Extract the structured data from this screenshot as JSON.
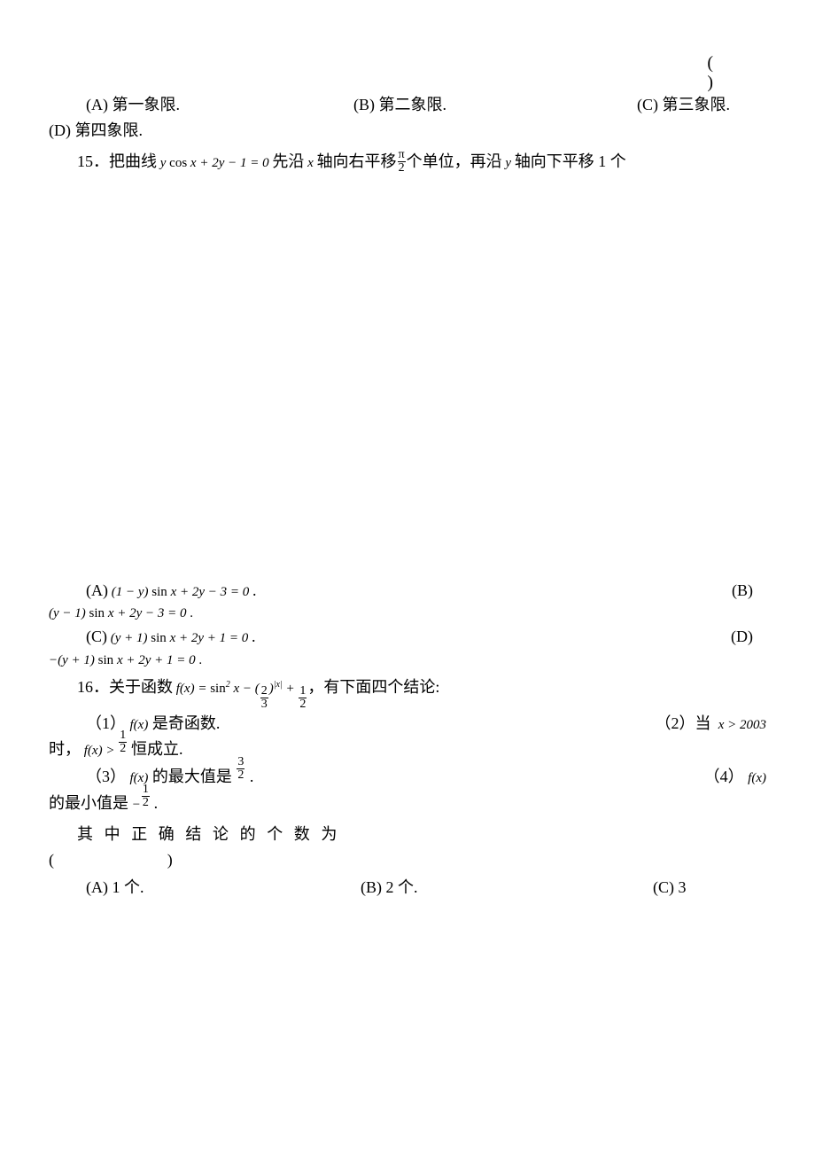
{
  "colors": {
    "text": "#000000",
    "background": "#ffffff"
  },
  "typography": {
    "body_family": "SimSun",
    "body_size_pt": 14,
    "math_family": "Times New Roman",
    "math_size_pt": 11
  },
  "paren_block": {
    "open": "(",
    "close": ")"
  },
  "q14_opts": {
    "A": "(A)  第一象限.",
    "B": "(B)  第二象限.",
    "C": "(C)  第三象限.",
    "D": "(D)  第四象限."
  },
  "q15": {
    "num": "15．",
    "pre": "把曲线",
    "curve": "y cos x + 2y − 1 = 0",
    "mid1": "先沿",
    "axis_x": "x",
    "mid2": "轴向右平移",
    "shift_frac": {
      "num": "π",
      "den": "2"
    },
    "mid3": "个单位，再沿",
    "axis_y": "y",
    "mid4": "轴向下平移 1 个",
    "opts": {
      "A_label": "(A)",
      "A_expr": "(1 − y) sin x + 2y − 3 = 0",
      "B_label": "(B)",
      "B_expr": "(y − 1) sin x + 2y − 3 = 0",
      "C_label": "(C)",
      "C_expr": "(y + 1) sin x + 2y + 1 = 0",
      "D_label": "(D)",
      "D_expr": "−(y + 1) sin x + 2y + 1 = 0"
    },
    "dot": "."
  },
  "q16": {
    "num": "16．",
    "pre": "关于函数",
    "fx_expr_prefix": "f(x) = sin",
    "fx_expr_sq": "2",
    "fx_expr_mid": " x − (",
    "frac_23": {
      "num": "2",
      "den": "3"
    },
    "fx_expr_pow": ")",
    "fx_expr_exp": "|x|",
    "fx_expr_plus": " + ",
    "frac_12": {
      "num": "1",
      "den": "2"
    },
    "tail": "，有下面四个结论:",
    "stmt1_label": "（1）",
    "stmt1": "是奇函数.",
    "stmt2_label": "（2）当",
    "stmt2_cond": "x > 2003",
    "stmt2_line2_pre": "时，",
    "stmt2_line2_expr": "f(x) > ",
    "stmt2_tail": "恒成立.",
    "stmt3_label": "（3）",
    "stmt3_mid": "的最大值是",
    "frac_32": {
      "num": "3",
      "den": "2"
    },
    "stmt4_label": "（4）",
    "stmt4_mid": "的最小值是",
    "neg": "−",
    "concl": "其中正确结论的个数为",
    "paren": "(        )",
    "opts": {
      "A": "(A)  1 个.",
      "B": "(B)  2 个.",
      "C": "(C)  3"
    }
  },
  "dot": ".",
  "fx_symbol": "f(x)"
}
